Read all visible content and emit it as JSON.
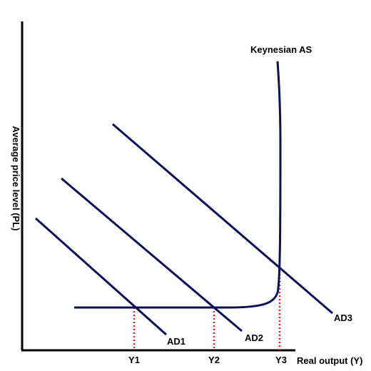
{
  "axes": {
    "y_label": "Average price level (PL)",
    "x_label": "Real output (Y)"
  },
  "curves": {
    "as_label": "Keynesian AS",
    "ad1_label": "AD1",
    "ad2_label": "AD2",
    "ad3_label": "AD3"
  },
  "ticks": {
    "y1": "Y1",
    "y2": "Y2",
    "y3": "Y3"
  },
  "colors": {
    "curve": "#0c0f5a",
    "axis": "#000000",
    "guide": "#e02020"
  }
}
